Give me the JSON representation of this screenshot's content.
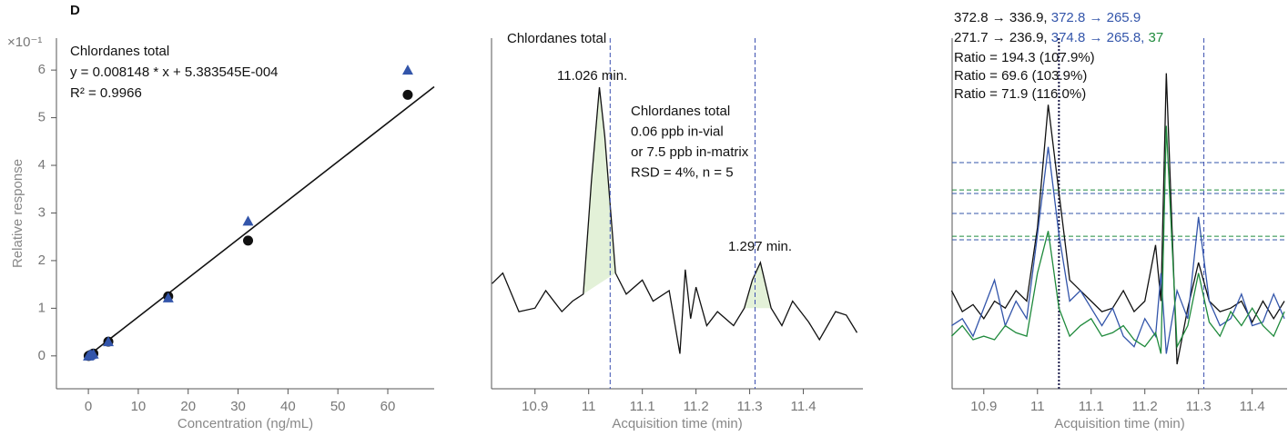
{
  "chart_data": [
    {
      "type": "scatter",
      "label": "D",
      "title": "Chlordanes total",
      "equation": "y = 0.008148 * x  + 5.383545E-004",
      "r_squared": "R² = 0.9966",
      "y_multiplier": "×10⁻¹",
      "xlabel": "Concentration (ng/mL)",
      "ylabel": "Relative response",
      "xlim": [
        -6.4,
        69.3
      ],
      "xticks": [
        0,
        10,
        20,
        30,
        40,
        50,
        60
      ],
      "ylim": [
        -0.69,
        6.67
      ],
      "yticks": [
        0,
        1,
        2,
        3,
        4,
        5,
        6
      ],
      "series": [
        {
          "marker": "circle",
          "color": "#111111",
          "x": [
            0.06,
            0.25,
            0.5,
            1,
            4,
            16,
            32,
            64
          ],
          "values": [
            0,
            0.01,
            0.02,
            0.05,
            0.3,
            1.25,
            2.42,
            5.48
          ]
        },
        {
          "marker": "triangle",
          "color": "#3355aa",
          "x": [
            0,
            0.25,
            0.5,
            1,
            4,
            16,
            32,
            64
          ],
          "values": [
            0,
            0.01,
            0.03,
            0.04,
            0.3,
            1.22,
            2.83,
            6.0
          ]
        }
      ],
      "fit_line": {
        "color": "#111111",
        "x": [
          0,
          69.3
        ],
        "values": [
          0.0054,
          5.65
        ]
      }
    },
    {
      "type": "line",
      "title": "Chlordanes total",
      "xlabel": "Acquisition time (min)",
      "xlim": [
        10.819,
        11.511
      ],
      "xticks": [
        10.9,
        11.0,
        11.1,
        11.2,
        11.3,
        11.4
      ],
      "ylim": [
        0,
        100
      ],
      "x": [
        10.82,
        10.84,
        10.87,
        10.9,
        10.92,
        10.95,
        10.97,
        10.99,
        11.005,
        11.02,
        11.03,
        11.05,
        11.07,
        11.1,
        11.12,
        11.15,
        11.17,
        11.18,
        11.19,
        11.2,
        11.22,
        11.24,
        11.27,
        11.29,
        11.305,
        11.32,
        11.34,
        11.36,
        11.38,
        11.41,
        11.43,
        11.46,
        11.48,
        11.5
      ],
      "series": [
        {
          "color": "#111111",
          "values": [
            30,
            33,
            22,
            23,
            28,
            22,
            25,
            27,
            59,
            86,
            72,
            33,
            27,
            31,
            25,
            28,
            10,
            34,
            20,
            29,
            18,
            22,
            18,
            23,
            31,
            36,
            23,
            18,
            25,
            19,
            14,
            22,
            21,
            16
          ]
        }
      ],
      "peak_fill": "#e3f1d8",
      "markers": [
        {
          "x": 11.04,
          "label": "11.026 min."
        },
        {
          "x": 11.31,
          "label": "1.297 min."
        }
      ],
      "marker_color": "#3a4fb0",
      "note": [
        "Chlordanes total",
        "0.06 ppb in-vial",
        "or 7.5 ppb in-matrix",
        "RSD = 4%, n = 5"
      ]
    },
    {
      "type": "line",
      "xlabel": "Acquisition time (min)",
      "xlim": [
        10.841,
        11.465
      ],
      "xticks": [
        10.9,
        11.0,
        11.1,
        11.2,
        11.3,
        11.4
      ],
      "ylim": [
        0,
        100
      ],
      "x": [
        10.84,
        10.86,
        10.88,
        10.9,
        10.92,
        10.94,
        10.96,
        10.98,
        11.0,
        11.02,
        11.04,
        11.06,
        11.08,
        11.1,
        11.12,
        11.14,
        11.16,
        11.18,
        11.2,
        11.22,
        11.23,
        11.24,
        11.26,
        11.28,
        11.3,
        11.32,
        11.34,
        11.36,
        11.38,
        11.4,
        11.42,
        11.44,
        11.46
      ],
      "series": [
        {
          "color": "#111111",
          "values": [
            28,
            22,
            24,
            20,
            25,
            23,
            28,
            25,
            46,
            81,
            56,
            31,
            28,
            25,
            22,
            23,
            28,
            22,
            25,
            41,
            25,
            90,
            7,
            23,
            36,
            25,
            22,
            23,
            25,
            19,
            25,
            20,
            25
          ]
        },
        {
          "color": "#3355aa",
          "values": [
            18,
            20,
            15,
            23,
            31,
            18,
            25,
            20,
            44,
            69,
            44,
            25,
            28,
            23,
            18,
            23,
            15,
            12,
            20,
            15,
            33,
            10,
            28,
            20,
            49,
            25,
            18,
            20,
            27,
            18,
            19,
            27,
            20
          ]
        },
        {
          "color": "#1f8a3c",
          "values": [
            15,
            18,
            14,
            15,
            14,
            18,
            16,
            15,
            33,
            45,
            23,
            15,
            18,
            20,
            15,
            16,
            18,
            14,
            12,
            16,
            10,
            75,
            12,
            18,
            33,
            19,
            15,
            22,
            18,
            23,
            18,
            15,
            22
          ]
        }
      ],
      "reference_lines": [
        {
          "value": 64.5,
          "color": "#3355aa"
        },
        {
          "value": 56.7,
          "color": "#1f8a3c"
        },
        {
          "value": 55.7,
          "color": "#3355aa"
        },
        {
          "value": 50,
          "color": "#3355aa"
        },
        {
          "value": 43.5,
          "color": "#1f8a3c"
        },
        {
          "value": 42.5,
          "color": "#3355aa"
        }
      ],
      "vertical_lines": [
        {
          "x": 11.04,
          "color": "#1a1a4a"
        },
        {
          "x": 11.31,
          "color": "#3a4fb0"
        }
      ],
      "transitions": [
        [
          {
            "text": "372.8 → 336.9, ",
            "color": "#111111"
          },
          {
            "text": "372.8 → 265.9",
            "color": "#3355aa"
          }
        ],
        [
          {
            "text": "271.7 → 236.9, ",
            "color": "#111111"
          },
          {
            "text": "374.8 → 265.8, ",
            "color": "#3355aa"
          },
          {
            "text": "37",
            "color": "#1f8a3c"
          }
        ]
      ],
      "ratios": [
        {
          "text": "Ratio = 194.3 (107.9%)",
          "color": "#3355aa"
        },
        {
          "text": "Ratio = 69.6 (103.9%)",
          "color": "#3355aa"
        },
        {
          "text": "Ratio = 71.9 (116.0%)",
          "color": "#1f8a3c"
        }
      ]
    }
  ]
}
